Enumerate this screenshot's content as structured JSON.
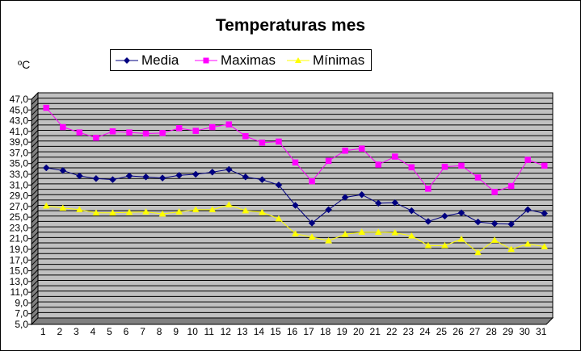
{
  "chart_data": {
    "type": "line",
    "title": "Temperaturas mes",
    "ylabel": "ºC",
    "xlabel": "",
    "ylim": [
      5,
      47
    ],
    "y_ticks": [
      5,
      7,
      9,
      11,
      13,
      15,
      17,
      19,
      21,
      23,
      25,
      27,
      29,
      31,
      33,
      35,
      37,
      39,
      41,
      43,
      45,
      47
    ],
    "y_tick_labels": [
      "5,0",
      "7,0",
      "9,0",
      "11,0",
      "13,0",
      "15,0",
      "17,0",
      "19,0",
      "21,0",
      "23,0",
      "25,0",
      "27,0",
      "29,0",
      "31,0",
      "33,0",
      "35,0",
      "37,0",
      "39,0",
      "41,0",
      "43,0",
      "45,0",
      "47,0"
    ],
    "x": [
      1,
      2,
      3,
      4,
      5,
      6,
      7,
      8,
      9,
      10,
      11,
      12,
      13,
      14,
      15,
      16,
      17,
      18,
      19,
      20,
      21,
      22,
      23,
      24,
      25,
      26,
      27,
      28,
      29,
      30,
      31
    ],
    "grid": "horizontal",
    "plot_background": "#c0c0c0",
    "legend_position": "top",
    "series": [
      {
        "name": "Media",
        "color": "#000080",
        "marker": "diamond",
        "values": [
          33.0,
          32.5,
          31.5,
          31.0,
          30.8,
          31.5,
          31.3,
          31.1,
          31.6,
          31.8,
          32.2,
          32.7,
          31.3,
          30.8,
          29.8,
          26.0,
          22.7,
          25.2,
          27.5,
          28.0,
          26.4,
          26.5,
          25.0,
          23.0,
          24.0,
          24.6,
          22.9,
          22.6,
          22.5,
          25.2,
          24.5
        ]
      },
      {
        "name": "Maximas",
        "color": "#ff00ff",
        "marker": "square",
        "values": [
          44.2,
          40.6,
          39.6,
          38.6,
          39.8,
          39.6,
          39.4,
          39.5,
          40.4,
          39.9,
          40.6,
          41.1,
          38.9,
          37.7,
          37.9,
          34.0,
          30.5,
          34.3,
          36.2,
          36.6,
          33.6,
          35.1,
          33.1,
          29.1,
          33.2,
          33.4,
          31.2,
          28.5,
          29.6,
          34.5,
          33.4
        ]
      },
      {
        "name": "Mínimas",
        "color": "#ffff00",
        "marker": "triangle",
        "values": [
          25.9,
          25.5,
          25.2,
          24.6,
          24.6,
          24.7,
          24.8,
          24.4,
          24.8,
          25.2,
          25.2,
          26.1,
          25.0,
          24.7,
          23.5,
          20.7,
          20.1,
          19.4,
          20.6,
          21.0,
          21.0,
          20.9,
          20.3,
          18.5,
          18.5,
          19.7,
          17.2,
          19.5,
          17.8,
          18.8,
          18.3
        ]
      }
    ]
  }
}
